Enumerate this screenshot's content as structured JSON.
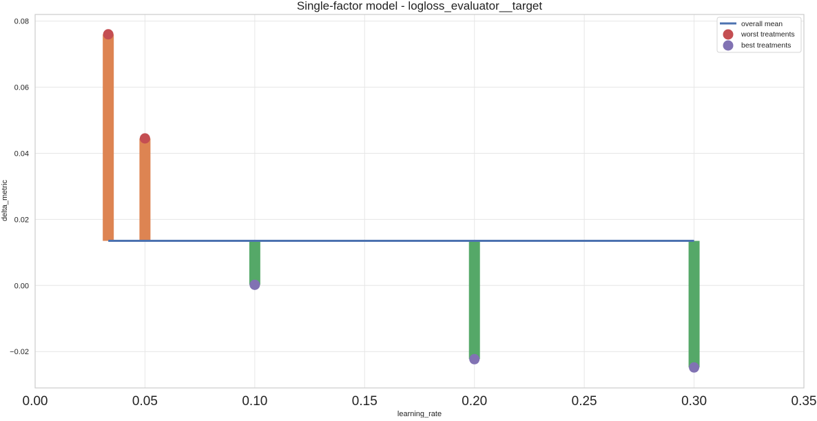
{
  "chart_data": {
    "type": "bar",
    "title": "Single-factor model - logloss_evaluator__target",
    "xlabel": "learning_rate",
    "ylabel": "delta_metric",
    "xlim": [
      0.0,
      0.35
    ],
    "ylim": [
      -0.031,
      0.082
    ],
    "x_ticks": [
      "0.00",
      "0.05",
      "0.10",
      "0.15",
      "0.20",
      "0.25",
      "0.30",
      "0.35"
    ],
    "x_tick_values": [
      0.0,
      0.05,
      0.1,
      0.15,
      0.2,
      0.25,
      0.3,
      0.35
    ],
    "y_ticks": [
      "−0.02",
      "0.00",
      "0.02",
      "0.04",
      "0.06",
      "0.08"
    ],
    "y_tick_values": [
      -0.02,
      0.0,
      0.02,
      0.04,
      0.06,
      0.08
    ],
    "grid": true,
    "legend_position": "top-right",
    "overall_mean": 0.0135,
    "overall_mean_x_range": [
      0.0333,
      0.3
    ],
    "treatments": [
      {
        "x": 0.0333,
        "value": 0.076
      },
      {
        "x": 0.05,
        "value": 0.0445
      },
      {
        "x": 0.1,
        "value": 0.0002
      },
      {
        "x": 0.2,
        "value": -0.0223
      },
      {
        "x": 0.3,
        "value": -0.0248
      }
    ],
    "series": [
      {
        "name": "overall mean",
        "kind": "line"
      },
      {
        "name": "worst treatments",
        "kind": "points",
        "x": [
          0.0333,
          0.05
        ],
        "values": [
          0.076,
          0.0445
        ]
      },
      {
        "name": "best treatments",
        "kind": "points",
        "x": [
          0.1,
          0.2,
          0.3
        ],
        "values": [
          0.0002,
          -0.0223,
          -0.0248
        ]
      }
    ],
    "colors": {
      "above_bar": "#DD8452",
      "below_bar": "#55A868",
      "mean_line": "#4C72B0",
      "worst_marker": "#C44E52",
      "best_marker": "#8172B3",
      "grid": "#e6e6e6",
      "frame": "#cccccc"
    }
  }
}
